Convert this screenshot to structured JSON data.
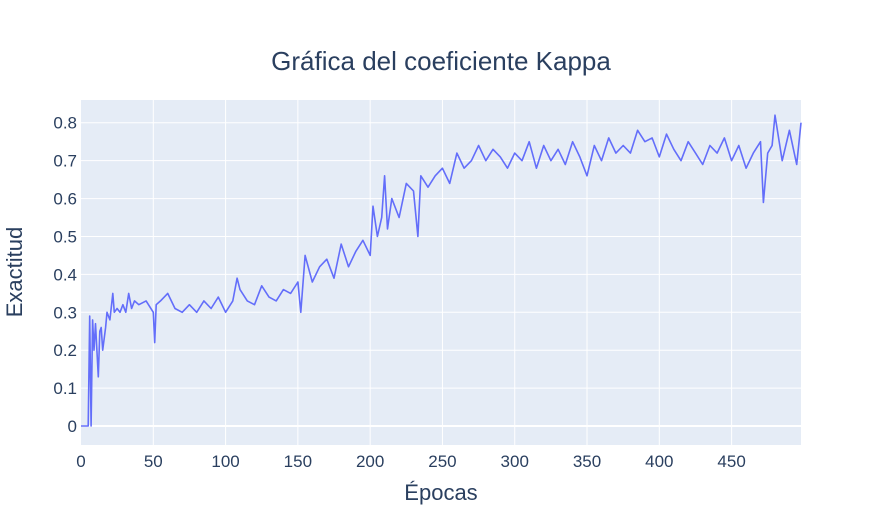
{
  "chart_data": {
    "type": "line",
    "title": "Gráfica del coeficiente Kappa",
    "xlabel": "Épocas",
    "ylabel": "Exactitud",
    "xlim": [
      0,
      498
    ],
    "ylim": [
      -0.05,
      0.86
    ],
    "x_ticks": [
      0,
      50,
      100,
      150,
      200,
      250,
      300,
      350,
      400,
      450
    ],
    "y_ticks": [
      0,
      0.1,
      0.2,
      0.3,
      0.4,
      0.5,
      0.6,
      0.7,
      0.8
    ],
    "x_tick_labels": [
      "0",
      "50",
      "100",
      "150",
      "200",
      "250",
      "300",
      "350",
      "400",
      "450"
    ],
    "y_tick_labels": [
      "0",
      "0.1",
      "0.2",
      "0.3",
      "0.4",
      "0.5",
      "0.6",
      "0.7",
      "0.8"
    ],
    "grid": true,
    "colors": {
      "line": "#636efa",
      "plot_bg": "#e5ecf6",
      "grid": "#ffffff",
      "text": "#2a3f5f"
    },
    "series": [
      {
        "x": [
          0,
          5,
          6,
          7,
          8,
          9,
          10,
          12,
          13,
          14,
          15,
          17,
          18,
          20,
          22,
          23,
          25,
          27,
          29,
          31,
          33,
          35,
          37,
          40,
          45,
          50,
          51,
          52,
          55,
          60,
          65,
          70,
          75,
          80,
          85,
          90,
          95,
          100,
          105,
          108,
          110,
          115,
          120,
          125,
          130,
          135,
          140,
          145,
          150,
          152,
          155,
          160,
          165,
          170,
          175,
          180,
          185,
          190,
          195,
          200,
          202,
          205,
          208,
          210,
          212,
          215,
          220,
          225,
          230,
          233,
          235,
          240,
          245,
          250,
          255,
          260,
          265,
          270,
          275,
          280,
          285,
          290,
          295,
          300,
          305,
          310,
          315,
          320,
          325,
          330,
          335,
          340,
          345,
          350,
          355,
          360,
          365,
          370,
          375,
          380,
          385,
          390,
          395,
          400,
          405,
          410,
          415,
          420,
          425,
          430,
          435,
          440,
          445,
          450,
          455,
          460,
          465,
          470,
          472,
          475,
          478,
          480,
          485,
          490,
          495,
          498
        ],
        "y": [
          0,
          0,
          0.29,
          0,
          0.28,
          0.2,
          0.27,
          0.13,
          0.25,
          0.26,
          0.2,
          0.26,
          0.3,
          0.28,
          0.35,
          0.3,
          0.31,
          0.3,
          0.32,
          0.3,
          0.35,
          0.31,
          0.33,
          0.32,
          0.33,
          0.3,
          0.22,
          0.32,
          0.33,
          0.35,
          0.31,
          0.3,
          0.32,
          0.3,
          0.33,
          0.31,
          0.34,
          0.3,
          0.33,
          0.39,
          0.36,
          0.33,
          0.32,
          0.37,
          0.34,
          0.33,
          0.36,
          0.35,
          0.38,
          0.3,
          0.45,
          0.38,
          0.42,
          0.44,
          0.39,
          0.48,
          0.42,
          0.46,
          0.49,
          0.45,
          0.58,
          0.5,
          0.55,
          0.66,
          0.52,
          0.6,
          0.55,
          0.64,
          0.62,
          0.5,
          0.66,
          0.63,
          0.66,
          0.68,
          0.64,
          0.72,
          0.68,
          0.7,
          0.74,
          0.7,
          0.73,
          0.71,
          0.68,
          0.72,
          0.7,
          0.75,
          0.68,
          0.74,
          0.7,
          0.73,
          0.69,
          0.75,
          0.71,
          0.66,
          0.74,
          0.7,
          0.76,
          0.72,
          0.74,
          0.72,
          0.78,
          0.75,
          0.76,
          0.71,
          0.77,
          0.73,
          0.7,
          0.75,
          0.72,
          0.69,
          0.74,
          0.72,
          0.76,
          0.7,
          0.74,
          0.68,
          0.72,
          0.75,
          0.59,
          0.72,
          0.74,
          0.82,
          0.7,
          0.78,
          0.69,
          0.8
        ]
      }
    ]
  }
}
